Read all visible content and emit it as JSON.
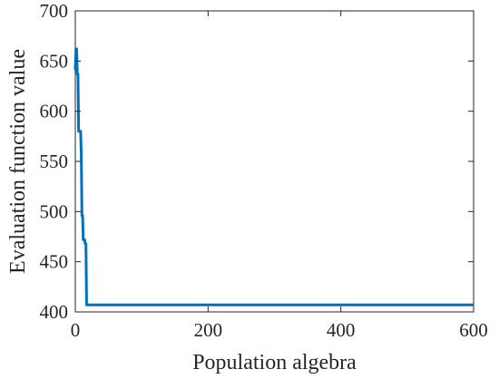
{
  "chart_data": {
    "type": "line",
    "title": "",
    "xlabel": "Population algebra",
    "ylabel": "Evaluation function value",
    "xlim": [
      0,
      600
    ],
    "ylim": [
      400,
      700
    ],
    "xticks": [
      0,
      200,
      400,
      600
    ],
    "yticks": [
      400,
      450,
      500,
      550,
      600,
      650,
      700
    ],
    "grid": false,
    "legend": "none",
    "series": [
      {
        "color": "#0072BD",
        "x": [
          0,
          1,
          2,
          3,
          4,
          5,
          6,
          7,
          8,
          9,
          10,
          11,
          12,
          13,
          14,
          15,
          16,
          17,
          18,
          19,
          20,
          600
        ],
        "y": [
          641,
          662,
          662,
          637,
          637,
          580,
          580,
          580,
          580,
          557,
          496,
          496,
          472,
          472,
          472,
          468,
          468,
          407,
          407,
          407,
          407,
          407
        ]
      }
    ]
  }
}
